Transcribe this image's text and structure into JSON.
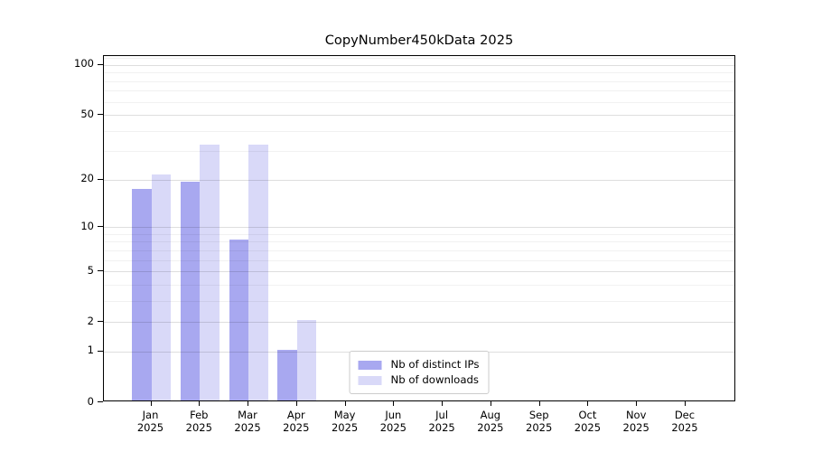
{
  "chart_data": {
    "type": "bar",
    "title": "CopyNumber450kData 2025",
    "categories": [
      "Jan",
      "Feb",
      "Mar",
      "Apr",
      "May",
      "Jun",
      "Jul",
      "Aug",
      "Sep",
      "Oct",
      "Nov",
      "Dec"
    ],
    "year_label": "2025",
    "series": [
      {
        "name": "Nb of distinct IPs",
        "color": "#a8a8f0",
        "values": [
          17,
          19,
          8,
          1,
          0,
          0,
          0,
          0,
          0,
          0,
          0,
          0
        ]
      },
      {
        "name": "Nb of downloads",
        "color": "#d9d9f8",
        "values": [
          21,
          32,
          32,
          2,
          0,
          0,
          0,
          0,
          0,
          0,
          0,
          0
        ]
      }
    ],
    "ylabel": "",
    "xlabel": "",
    "y_scale": "log10(1+x)",
    "y_major_ticks": [
      0,
      1,
      2,
      5,
      10,
      20,
      50,
      100
    ],
    "y_minor_gridlines": [
      3,
      4,
      6,
      7,
      8,
      9,
      30,
      40,
      60,
      70,
      80,
      90,
      110
    ],
    "y_axis_max": 113,
    "grid": "on",
    "legend_position": "lower center"
  }
}
